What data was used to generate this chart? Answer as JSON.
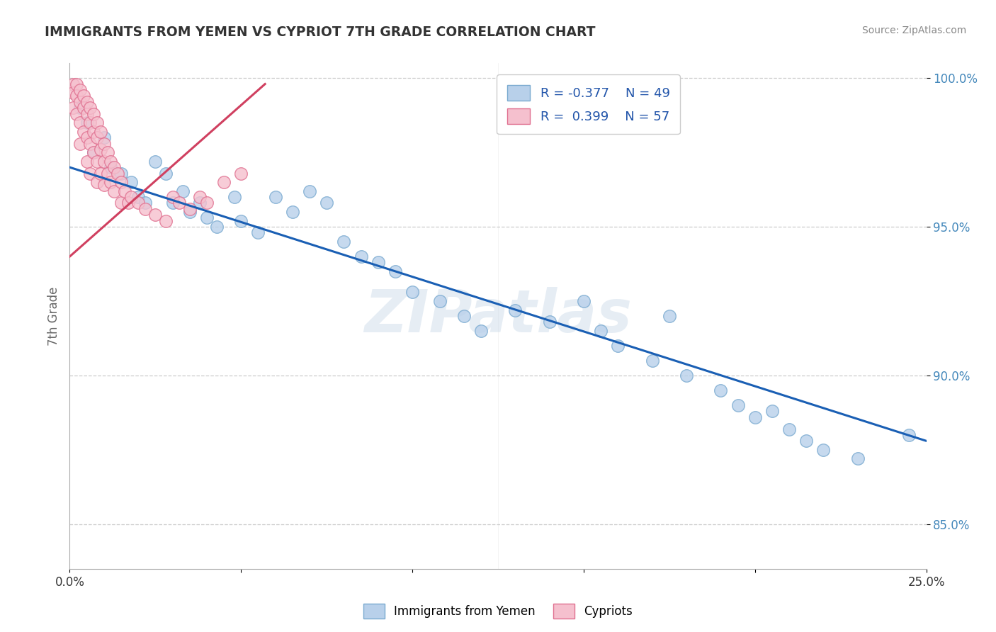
{
  "title": "IMMIGRANTS FROM YEMEN VS CYPRIOT 7TH GRADE CORRELATION CHART",
  "source_text": "Source: ZipAtlas.com",
  "ylabel": "7th Grade",
  "x_min": 0.0,
  "x_max": 0.25,
  "y_min": 0.835,
  "y_max": 1.005,
  "x_ticks": [
    0.0,
    0.05,
    0.1,
    0.15,
    0.2,
    0.25
  ],
  "x_tick_labels": [
    "0.0%",
    "",
    "",
    "",
    "",
    "25.0%"
  ],
  "y_ticks": [
    0.85,
    0.9,
    0.95,
    1.0
  ],
  "y_tick_labels": [
    "85.0%",
    "90.0%",
    "95.0%",
    "100.0%"
  ],
  "blue_color": "#b8d0ea",
  "blue_edge_color": "#7aaad0",
  "pink_color": "#f5c0ce",
  "pink_edge_color": "#e07090",
  "trend_blue": "#1a5fb4",
  "trend_pink": "#d04060",
  "legend_r1": "R = -0.377",
  "legend_n1": "N = 49",
  "legend_r2": "R =  0.399",
  "legend_n2": "N = 57",
  "watermark": "ZIPatlas",
  "blue_scatter_x": [
    0.003,
    0.005,
    0.007,
    0.01,
    0.012,
    0.015,
    0.018,
    0.02,
    0.022,
    0.025,
    0.028,
    0.03,
    0.033,
    0.035,
    0.038,
    0.04,
    0.043,
    0.048,
    0.05,
    0.055,
    0.06,
    0.065,
    0.07,
    0.075,
    0.08,
    0.085,
    0.09,
    0.095,
    0.1,
    0.108,
    0.115,
    0.12,
    0.13,
    0.14,
    0.15,
    0.155,
    0.16,
    0.17,
    0.175,
    0.18,
    0.19,
    0.195,
    0.2,
    0.205,
    0.21,
    0.215,
    0.22,
    0.23,
    0.245
  ],
  "blue_scatter_y": [
    0.99,
    0.985,
    0.975,
    0.98,
    0.97,
    0.968,
    0.965,
    0.96,
    0.958,
    0.972,
    0.968,
    0.958,
    0.962,
    0.955,
    0.958,
    0.953,
    0.95,
    0.96,
    0.952,
    0.948,
    0.96,
    0.955,
    0.962,
    0.958,
    0.945,
    0.94,
    0.938,
    0.935,
    0.928,
    0.925,
    0.92,
    0.915,
    0.922,
    0.918,
    0.925,
    0.915,
    0.91,
    0.905,
    0.92,
    0.9,
    0.895,
    0.89,
    0.886,
    0.888,
    0.882,
    0.878,
    0.875,
    0.872,
    0.88
  ],
  "pink_scatter_x": [
    0.001,
    0.001,
    0.001,
    0.002,
    0.002,
    0.002,
    0.003,
    0.003,
    0.003,
    0.003,
    0.004,
    0.004,
    0.004,
    0.005,
    0.005,
    0.005,
    0.005,
    0.006,
    0.006,
    0.006,
    0.006,
    0.007,
    0.007,
    0.007,
    0.008,
    0.008,
    0.008,
    0.008,
    0.009,
    0.009,
    0.009,
    0.01,
    0.01,
    0.01,
    0.011,
    0.011,
    0.012,
    0.012,
    0.013,
    0.013,
    0.014,
    0.015,
    0.015,
    0.016,
    0.017,
    0.018,
    0.02,
    0.022,
    0.025,
    0.028,
    0.03,
    0.032,
    0.035,
    0.038,
    0.04,
    0.045,
    0.05
  ],
  "pink_scatter_y": [
    0.998,
    0.995,
    0.99,
    0.998,
    0.994,
    0.988,
    0.996,
    0.992,
    0.985,
    0.978,
    0.994,
    0.99,
    0.982,
    0.992,
    0.988,
    0.98,
    0.972,
    0.99,
    0.985,
    0.978,
    0.968,
    0.988,
    0.982,
    0.975,
    0.985,
    0.98,
    0.972,
    0.965,
    0.982,
    0.976,
    0.968,
    0.978,
    0.972,
    0.964,
    0.975,
    0.968,
    0.972,
    0.965,
    0.97,
    0.962,
    0.968,
    0.965,
    0.958,
    0.962,
    0.958,
    0.96,
    0.958,
    0.956,
    0.954,
    0.952,
    0.96,
    0.958,
    0.956,
    0.96,
    0.958,
    0.965,
    0.968
  ],
  "blue_trend_x": [
    0.0,
    0.25
  ],
  "blue_trend_y": [
    0.97,
    0.878
  ],
  "pink_trend_x": [
    0.0,
    0.057
  ],
  "pink_trend_y": [
    0.94,
    0.998
  ]
}
